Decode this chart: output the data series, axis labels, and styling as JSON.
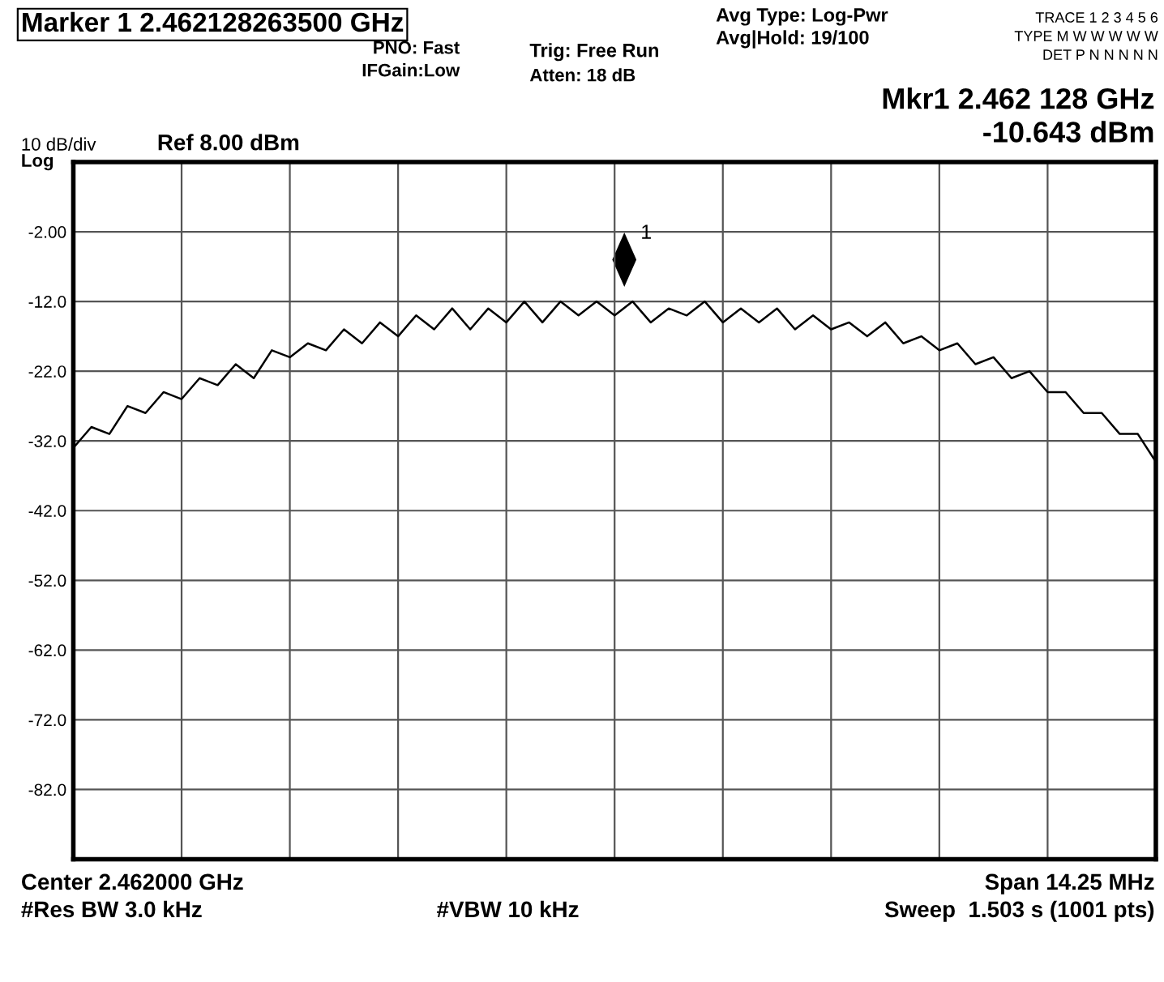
{
  "chart_data": {
    "type": "line",
    "title": "Marker 1 2.462128263500 GHz",
    "ylabel": "10 dB/div",
    "annotations": [
      "PNO: Fast",
      "IFGain:Low",
      "Trig: Free Run",
      "Atten: 18 dB",
      "Avg Type: Log-Pwr",
      "Avg|Hold: 19/100",
      "TRACE 1 2 3 4 5 6",
      "TYPE M W W W W W",
      "DET P N N N N N",
      "Mkr1 2.462 128 GHz",
      "-10.643 dBm",
      "Ref 8.00 dBm",
      "Log",
      "Center 2.462000 GHz",
      "Span 14.25 MHz",
      "#Res BW 3.0 kHz",
      "#VBW 10 kHz",
      "Sweep  1.503 s (1001 pts)",
      "1"
    ],
    "categories": [
      null,
      null,
      null,
      null,
      null,
      null,
      null,
      null,
      null,
      null,
      null,
      null,
      null,
      null,
      null,
      null,
      null,
      null,
      null,
      null,
      null,
      null,
      null,
      null,
      null,
      null,
      null,
      null,
      null,
      null,
      null,
      null,
      null,
      null,
      null,
      null,
      null,
      null,
      null,
      null,
      null,
      null,
      null,
      null,
      null,
      null,
      null,
      null,
      null,
      null,
      null,
      null,
      null,
      null,
      null,
      null,
      null,
      null,
      null,
      null,
      null
    ],
    "series": [
      {
        "color": "#000000",
        "values": [
          -33,
          -30,
          -31,
          -27,
          -28,
          -25,
          -26,
          -23,
          -24,
          -21,
          -23,
          -19,
          -20,
          -18,
          -19,
          -16,
          -18,
          -15,
          -17,
          -14,
          -16,
          -13,
          -16,
          -13,
          -15,
          -12,
          -15,
          -12,
          -14,
          -12,
          -14,
          -12,
          -15,
          -13,
          -14,
          -12,
          -15,
          -13,
          -15,
          -13,
          -16,
          -14,
          -16,
          -15,
          -17,
          -15,
          -18,
          -17,
          -19,
          -18,
          -21,
          -20,
          -23,
          -22,
          -25,
          -25,
          -28,
          -28,
          -31,
          -31,
          -35
        ]
      }
    ],
    "ylim": [
      -92,
      8
    ],
    "yticks": [
      {
        "value": 8,
        "label": null
      },
      {
        "value": -2,
        "label": "-2.00"
      },
      {
        "value": -12,
        "label": "-12.0"
      },
      {
        "value": -22,
        "label": "-22.0"
      },
      {
        "value": -32,
        "label": "-32.0"
      },
      {
        "value": -42,
        "label": "-42.0"
      },
      {
        "value": -52,
        "label": "-52.0"
      },
      {
        "value": -62,
        "label": "-62.0"
      },
      {
        "value": -72,
        "label": "-72.0"
      },
      {
        "value": -82,
        "label": "-82.0"
      },
      {
        "value": -92,
        "label": null
      }
    ],
    "grid": true,
    "legend": false,
    "line_style": "solid",
    "marker": "none"
  }
}
